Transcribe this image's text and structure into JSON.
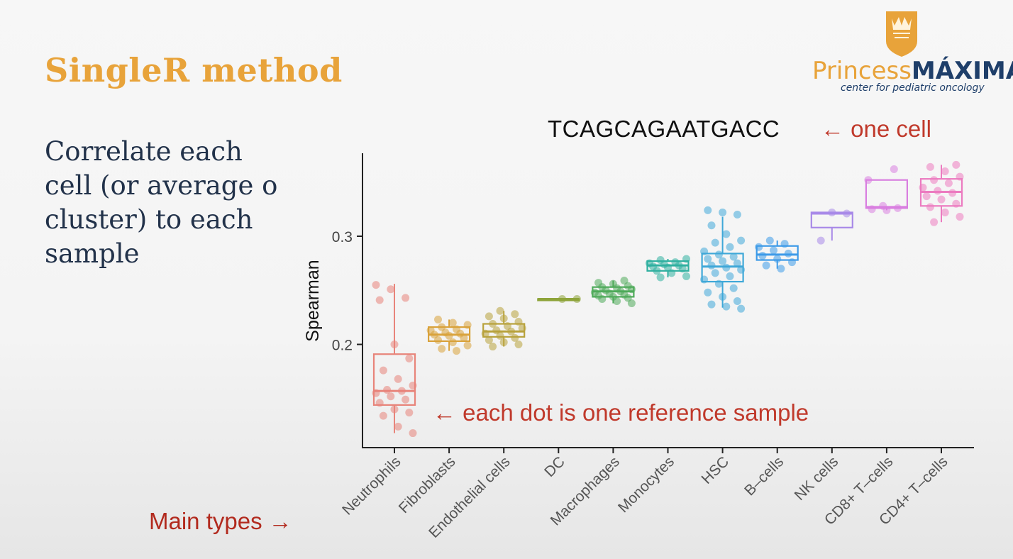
{
  "slide": {
    "title": "SingleR method",
    "body_lines": [
      "Correlate each",
      "cell (or average o",
      "cluster) to each",
      "sample"
    ]
  },
  "logo": {
    "name_part1": "Princess",
    "name_part2": "MÁXIMA",
    "subtitle": "center for pediatric oncology",
    "brand_colors": {
      "orange": "#e8a33a",
      "navy": "#1f3f6a"
    }
  },
  "annotations": {
    "sequence": "TCAGCAGAATGACC",
    "one_cell": "← one cell",
    "each_dot": "← each dot is one reference sample",
    "main_types": "Main types →"
  },
  "chart_data": {
    "type": "boxplot",
    "xlabel": "",
    "ylabel": "Spearman",
    "yticks": [
      0.2,
      0.3
    ],
    "ylim": [
      0.105,
      0.375
    ],
    "grid": false,
    "categories": [
      "Neutrophils",
      "Fibroblasts",
      "Endothelial cells",
      "DC",
      "Macrophages",
      "Monocytes",
      "HSC",
      "B–cells",
      "NK cells",
      "CD8+ T–cells",
      "CD4+ T–cells"
    ],
    "colors": [
      "#e8847a",
      "#d9a23b",
      "#b8a23c",
      "#8ea43a",
      "#4eaa5a",
      "#30b0a0",
      "#3fa8d8",
      "#3d9ae8",
      "#a889e8",
      "#d97fe0",
      "#ec7bc0"
    ],
    "boxes": [
      {
        "min": 0.118,
        "q1": 0.144,
        "median": 0.157,
        "q3": 0.191,
        "max": 0.256
      },
      {
        "min": 0.194,
        "q1": 0.203,
        "median": 0.209,
        "q3": 0.216,
        "max": 0.223
      },
      {
        "min": 0.198,
        "q1": 0.207,
        "median": 0.212,
        "q3": 0.219,
        "max": 0.231
      },
      {
        "min": 0.242,
        "q1": 0.242,
        "median": 0.242,
        "q3": 0.242,
        "max": 0.242
      },
      {
        "min": 0.238,
        "q1": 0.244,
        "median": 0.249,
        "q3": 0.253,
        "max": 0.259
      },
      {
        "min": 0.262,
        "q1": 0.268,
        "median": 0.273,
        "q3": 0.277,
        "max": 0.279
      },
      {
        "min": 0.234,
        "q1": 0.258,
        "median": 0.272,
        "q3": 0.284,
        "max": 0.318
      },
      {
        "min": 0.27,
        "q1": 0.278,
        "median": 0.283,
        "q3": 0.291,
        "max": 0.296
      },
      {
        "min": 0.296,
        "q1": 0.308,
        "median": 0.321,
        "q3": 0.322,
        "max": 0.322
      },
      {
        "min": 0.324,
        "q1": 0.326,
        "median": 0.327,
        "q3": 0.352,
        "max": 0.352
      },
      {
        "min": 0.313,
        "q1": 0.328,
        "median": 0.341,
        "q3": 0.353,
        "max": 0.366
      }
    ],
    "points": [
      [
        0.255,
        0.251,
        0.243,
        0.241,
        0.2,
        0.187,
        0.176,
        0.168,
        0.162,
        0.158,
        0.157,
        0.155,
        0.152,
        0.149,
        0.146,
        0.14,
        0.137,
        0.134,
        0.124,
        0.118
      ],
      [
        0.223,
        0.22,
        0.218,
        0.216,
        0.214,
        0.213,
        0.211,
        0.21,
        0.209,
        0.208,
        0.206,
        0.204,
        0.202,
        0.199,
        0.196,
        0.194
      ],
      [
        0.231,
        0.228,
        0.226,
        0.224,
        0.221,
        0.219,
        0.217,
        0.215,
        0.213,
        0.212,
        0.21,
        0.208,
        0.206,
        0.204,
        0.202,
        0.2,
        0.198
      ],
      [
        0.242,
        0.242
      ],
      [
        0.259,
        0.257,
        0.256,
        0.254,
        0.253,
        0.252,
        0.251,
        0.25,
        0.249,
        0.248,
        0.247,
        0.246,
        0.245,
        0.244,
        0.243,
        0.242,
        0.24,
        0.238
      ],
      [
        0.279,
        0.278,
        0.276,
        0.275,
        0.274,
        0.273,
        0.272,
        0.271,
        0.27,
        0.268,
        0.266,
        0.263,
        0.262
      ],
      [
        0.324,
        0.322,
        0.32,
        0.31,
        0.302,
        0.296,
        0.294,
        0.29,
        0.286,
        0.283,
        0.281,
        0.279,
        0.277,
        0.275,
        0.273,
        0.271,
        0.269,
        0.266,
        0.263,
        0.26,
        0.256,
        0.252,
        0.248,
        0.244,
        0.24,
        0.237,
        0.235,
        0.233
      ],
      [
        0.296,
        0.293,
        0.29,
        0.287,
        0.284,
        0.282,
        0.279,
        0.276,
        0.273,
        0.27
      ],
      [
        0.322,
        0.321,
        0.296
      ],
      [
        0.362,
        0.352,
        0.328,
        0.326,
        0.325,
        0.324
      ],
      [
        0.366,
        0.364,
        0.36,
        0.355,
        0.352,
        0.349,
        0.345,
        0.342,
        0.34,
        0.337,
        0.334,
        0.33,
        0.327,
        0.322,
        0.318,
        0.313
      ]
    ]
  }
}
